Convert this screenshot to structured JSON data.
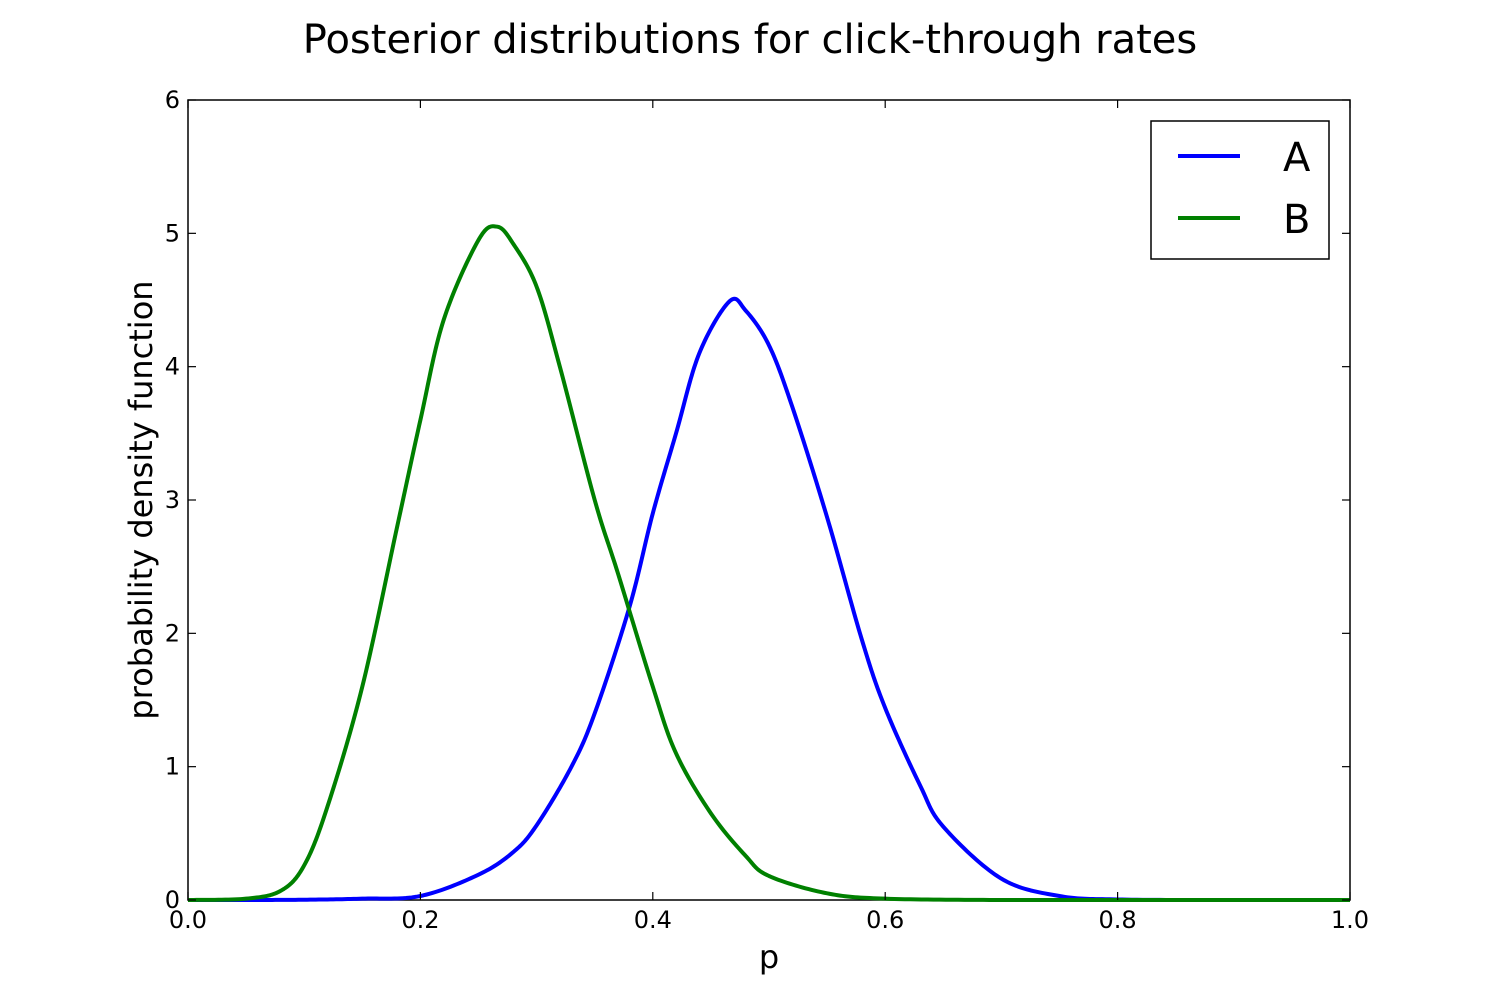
{
  "chart_data": {
    "type": "line",
    "title": "Posterior distributions for click-through rates",
    "xlabel": "p",
    "ylabel": "probability density function",
    "xlim": [
      0.0,
      1.0
    ],
    "ylim": [
      0,
      6
    ],
    "x_ticks": [
      "0.0",
      "0.2",
      "0.4",
      "0.6",
      "0.8",
      "1.0"
    ],
    "y_ticks": [
      "0",
      "1",
      "2",
      "3",
      "4",
      "5",
      "6"
    ],
    "grid": false,
    "legend_position": "top-right",
    "series": [
      {
        "name": "A",
        "color": "#0000ff",
        "x": [
          0.0,
          0.05,
          0.1,
          0.15,
          0.2,
          0.25,
          0.28,
          0.3,
          0.33,
          0.35,
          0.38,
          0.4,
          0.42,
          0.44,
          0.466,
          0.48,
          0.5,
          0.52,
          0.55,
          0.58,
          0.6,
          0.63,
          0.65,
          0.7,
          0.75,
          0.8,
          0.9,
          1.0
        ],
        "y": [
          0.0,
          0.0,
          0.002,
          0.01,
          0.03,
          0.19,
          0.36,
          0.56,
          1.0,
          1.4,
          2.2,
          2.9,
          3.5,
          4.1,
          4.49,
          4.42,
          4.16,
          3.7,
          2.87,
          1.95,
          1.44,
          0.86,
          0.55,
          0.16,
          0.03,
          0.004,
          0.0,
          0.0
        ]
      },
      {
        "name": "B",
        "color": "#008000",
        "x": [
          0.0,
          0.05,
          0.08,
          0.1,
          0.12,
          0.15,
          0.18,
          0.2,
          0.22,
          0.25,
          0.266,
          0.28,
          0.3,
          0.32,
          0.35,
          0.37,
          0.4,
          0.42,
          0.45,
          0.48,
          0.5,
          0.55,
          0.6,
          0.7,
          0.8,
          1.0
        ],
        "y": [
          0.0,
          0.01,
          0.07,
          0.26,
          0.7,
          1.6,
          2.8,
          3.6,
          4.35,
          4.95,
          5.05,
          4.92,
          4.6,
          4.0,
          3.0,
          2.45,
          1.6,
          1.1,
          0.65,
          0.33,
          0.18,
          0.05,
          0.01,
          0.0,
          0.0,
          0.0
        ]
      }
    ]
  }
}
